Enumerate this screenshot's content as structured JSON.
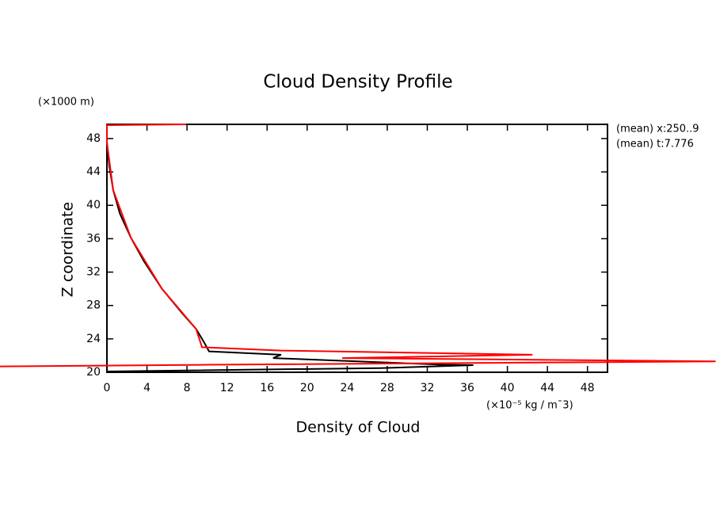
{
  "chart_data": {
    "type": "line",
    "title": "Cloud Density Profile",
    "x_label": "Density of Cloud",
    "y_label": "Z coordinate",
    "x_unit": "(×10⁻⁵ kg / m¯3)",
    "y_unit": "(×1000 m)",
    "annotations": [
      "(mean) x:250..9",
      "(mean) t:7.776"
    ],
    "xlim": [
      0,
      50
    ],
    "ylim": [
      20,
      49.7
    ],
    "xticks": [
      0,
      4,
      8,
      12,
      16,
      20,
      24,
      28,
      32,
      36,
      40,
      44,
      48
    ],
    "yticks": [
      20,
      24,
      28,
      32,
      36,
      40,
      44,
      48
    ],
    "series": [
      {
        "color": "#000000",
        "x": [
          0,
          0.24,
          0.63,
          1.3,
          2.4,
          3.7,
          5.5,
          7.5,
          8.9,
          9.7,
          10.2,
          17.4,
          16.6,
          33.6,
          36.6,
          27.3,
          0
        ],
        "values": [
          47.5,
          44.7,
          41.8,
          39,
          36.1,
          33.3,
          30,
          27.1,
          25.2,
          23.6,
          22.5,
          22.1,
          21.7,
          20.9,
          20.85,
          20.5,
          20.1
        ]
      },
      {
        "color": "#ff0000",
        "x": [
          7.9,
          0,
          0,
          0.63,
          2.4,
          5.5,
          8.9,
          9.5,
          17.4,
          42.5,
          23.5,
          60.8,
          10,
          -10.7
        ],
        "values": [
          49.7,
          49.6,
          47.5,
          41.8,
          36.1,
          30,
          25.2,
          23,
          22.6,
          22.1,
          21.7,
          21.3,
          20.9,
          20.7
        ]
      }
    ]
  }
}
